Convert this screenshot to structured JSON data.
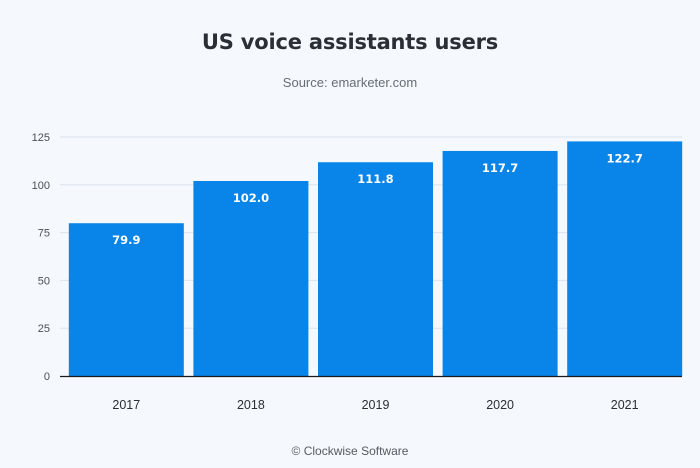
{
  "header": {
    "title": "US voice assistants users",
    "subtitle": "Source: emarketer.com"
  },
  "footer": {
    "credit": "© Clockwise Software"
  },
  "colors": {
    "bar": "#0984e8",
    "background": "#f5f8fc",
    "grid": "#dce4ee",
    "axis": "#1a1a1a"
  },
  "chart_data": {
    "type": "bar",
    "title": "US voice assistants users",
    "subtitle": "Source: emarketer.com",
    "xlabel": "",
    "ylabel": "",
    "categories": [
      "2017",
      "2018",
      "2019",
      "2020",
      "2021"
    ],
    "values": [
      79.9,
      102.0,
      111.8,
      117.7,
      122.7
    ],
    "data_labels": [
      "79.9",
      "102.0",
      "111.8",
      "117.7",
      "122.7"
    ],
    "ylim": [
      0,
      125
    ],
    "yticks": [
      0,
      25,
      50,
      75,
      100,
      125
    ],
    "ytick_labels": [
      "0",
      "25",
      "50",
      "75",
      "100",
      "125"
    ],
    "grid": true,
    "legend": "none"
  }
}
